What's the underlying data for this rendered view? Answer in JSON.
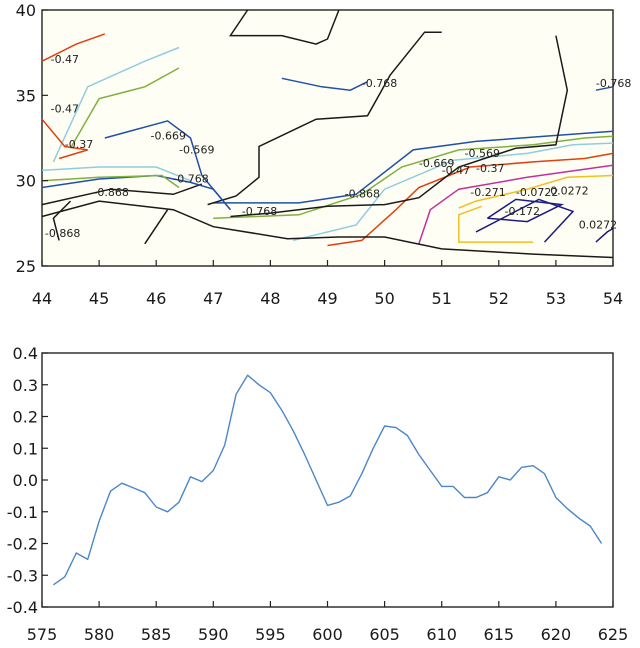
{
  "chart_data": [
    {
      "type": "contour",
      "xlim": [
        44,
        54
      ],
      "ylim": [
        25,
        40
      ],
      "x_ticks": [
        "44",
        "45",
        "46",
        "47",
        "48",
        "49",
        "50",
        "51",
        "52",
        "53",
        "54"
      ],
      "y_ticks": [
        "25",
        "30",
        "35",
        "40"
      ],
      "grid": false,
      "contour_labels": [
        "-0.47",
        "-0.47",
        "-0.37",
        "-0.669",
        "-0.569",
        "-0.768",
        "-0.868",
        "-0.868",
        "-0.768",
        "-0.768",
        "-0.868",
        "-0.669",
        "-0.569",
        "-0.47",
        "-0.37",
        "-0.271",
        "-0.0722",
        "-0.172",
        "0.0272",
        "0.0272",
        "-0.768"
      ],
      "contours": [
        {
          "level": "0.0272",
          "color": "#f0c020",
          "points": [
            [
              51.3,
              28.4
            ],
            [
              51.6,
              28.8
            ],
            [
              52.5,
              29.5
            ],
            [
              53.2,
              30.2
            ],
            [
              54.0,
              30.3
            ]
          ]
        },
        {
          "level": "0.0272",
          "color": "#f0c020",
          "points": [
            [
              51.7,
              28.5
            ],
            [
              51.3,
              28.0
            ],
            [
              51.3,
              26.4
            ],
            [
              52.6,
              26.4
            ]
          ]
        },
        {
          "level": "-0.0722",
          "color": "#1c1c80",
          "points": [
            [
              51.8,
              27.8
            ],
            [
              52.3,
              28.9
            ],
            [
              53.1,
              28.6
            ],
            [
              52.5,
              27.6
            ],
            [
              51.8,
              27.8
            ]
          ]
        },
        {
          "level": "-0.172",
          "color": "#1c1c80",
          "points": [
            [
              51.6,
              27.0
            ],
            [
              52.7,
              28.9
            ],
            [
              53.3,
              28.2
            ],
            [
              52.8,
              26.4
            ]
          ]
        },
        {
          "level": "0.0272",
          "color": "#1c1c80",
          "points": [
            [
              53.7,
              26.4
            ],
            [
              53.9,
              27.0
            ],
            [
              54.0,
              27.2
            ]
          ]
        },
        {
          "level": "-0.271",
          "color": "#c030a0",
          "points": [
            [
              50.6,
              26.3
            ],
            [
              50.8,
              28.3
            ],
            [
              51.3,
              29.5
            ],
            [
              52.5,
              30.2
            ],
            [
              54.0,
              30.9
            ]
          ]
        },
        {
          "level": "-0.37",
          "color": "#e04010",
          "points": [
            [
              49.0,
              26.2
            ],
            [
              49.6,
              26.5
            ],
            [
              50.2,
              28.3
            ],
            [
              50.6,
              29.6
            ],
            [
              51.5,
              30.8
            ],
            [
              52.6,
              31.1
            ],
            [
              53.5,
              31.3
            ],
            [
              54.0,
              31.6
            ]
          ]
        },
        {
          "level": "-0.47",
          "color": "#90cce0",
          "points": [
            [
              48.4,
              26.5
            ],
            [
              49.5,
              27.4
            ],
            [
              50.0,
              29.5
            ],
            [
              51.2,
              31.2
            ],
            [
              52.5,
              31.6
            ],
            [
              53.3,
              32.1
            ],
            [
              54.0,
              32.2
            ]
          ]
        },
        {
          "level": "-0.569",
          "color": "#80b040",
          "points": [
            [
              47.0,
              27.8
            ],
            [
              48.5,
              28.0
            ],
            [
              49.6,
              29.2
            ],
            [
              50.3,
              30.8
            ],
            [
              51.3,
              31.8
            ],
            [
              52.6,
              32.1
            ],
            [
              53.5,
              32.5
            ],
            [
              54.0,
              32.6
            ]
          ]
        },
        {
          "level": "-0.669",
          "color": "#2050a8",
          "points": [
            [
              47.0,
              28.7
            ],
            [
              48.5,
              28.7
            ],
            [
              49.5,
              29.2
            ],
            [
              50.5,
              31.8
            ],
            [
              51.6,
              32.3
            ],
            [
              52.8,
              32.6
            ],
            [
              54.0,
              32.9
            ]
          ]
        },
        {
          "level": "-0.868",
          "color": "#1a1a1a",
          "points": [
            [
              46.9,
              28.6
            ],
            [
              47.4,
              29.1
            ],
            [
              47.8,
              30.2
            ],
            [
              47.8,
              32.0
            ],
            [
              48.8,
              33.6
            ],
            [
              49.7,
              33.8
            ],
            [
              50.1,
              36.2
            ],
            [
              50.7,
              38.7
            ],
            [
              51.0,
              38.7
            ]
          ]
        },
        {
          "level": "-0.868",
          "color": "#1a1a1a",
          "points": [
            [
              47.3,
              27.9
            ],
            [
              48.0,
              28.1
            ],
            [
              49.0,
              28.5
            ],
            [
              50.0,
              28.6
            ],
            [
              50.6,
              29.0
            ],
            [
              51.3,
              30.8
            ],
            [
              52.3,
              31.9
            ],
            [
              53.0,
              32.1
            ],
            [
              53.2,
              35.3
            ],
            [
              53.0,
              38.5
            ]
          ]
        },
        {
          "level": "-0.868",
          "color": "#1a1a1a",
          "points": [
            [
              44.0,
              27.9
            ],
            [
              45.0,
              28.8
            ],
            [
              46.3,
              28.3
            ],
            [
              47.0,
              27.3
            ],
            [
              48.3,
              26.6
            ],
            [
              49.2,
              26.7
            ],
            [
              50.0,
              26.7
            ],
            [
              51.0,
              26.0
            ],
            [
              52.6,
              25.7
            ],
            [
              54.0,
              25.5
            ]
          ]
        },
        {
          "level": "-0.868",
          "color": "#1a1a1a",
          "points": [
            [
              44.0,
              28.6
            ],
            [
              45.2,
              29.5
            ],
            [
              46.3,
              29.2
            ],
            [
              46.8,
              29.8
            ]
          ]
        },
        {
          "level": "-0.868",
          "color": "#1a1a1a",
          "points": [
            [
              44.5,
              28.8
            ],
            [
              44.2,
              27.8
            ],
            [
              44.3,
              26.5
            ]
          ]
        },
        {
          "level": "-0.868",
          "color": "#1a1a1a",
          "points": [
            [
              45.8,
              26.3
            ],
            [
              46.2,
              28.3
            ]
          ]
        },
        {
          "level": "-0.868",
          "color": "#1a1a1a",
          "points": [
            [
              47.6,
              40.0
            ],
            [
              47.3,
              38.5
            ],
            [
              48.2,
              38.5
            ],
            [
              48.8,
              38.0
            ],
            [
              49.0,
              38.3
            ],
            [
              49.2,
              40.0
            ]
          ]
        },
        {
          "level": "-0.768",
          "color": "#2050a8",
          "points": [
            [
              48.2,
              36.0
            ],
            [
              48.9,
              35.5
            ],
            [
              49.4,
              35.3
            ],
            [
              49.7,
              35.8
            ]
          ]
        },
        {
          "level": "-0.768",
          "color": "#2050a8",
          "points": [
            [
              53.7,
              35.3
            ],
            [
              54.0,
              35.5
            ]
          ]
        },
        {
          "level": "-0.768",
          "color": "#2050a8",
          "points": [
            [
              44.0,
              29.6
            ],
            [
              45.0,
              30.1
            ],
            [
              46.0,
              30.3
            ],
            [
              46.6,
              29.9
            ],
            [
              47.0,
              29.5
            ],
            [
              47.3,
              28.3
            ]
          ]
        },
        {
          "level": "-0.669",
          "color": "#2050a8",
          "points": [
            [
              45.1,
              32.5
            ],
            [
              46.2,
              33.5
            ],
            [
              46.6,
              32.5
            ],
            [
              46.8,
              30.3
            ],
            [
              47.3,
              28.3
            ]
          ]
        },
        {
          "level": "-0.569",
          "color": "#80b040",
          "points": [
            [
              44.5,
              31.9
            ],
            [
              45.0,
              34.8
            ],
            [
              45.8,
              35.5
            ],
            [
              46.4,
              36.6
            ]
          ]
        },
        {
          "level": "-0.47",
          "color": "#90cce0",
          "points": [
            [
              44.2,
              31.1
            ],
            [
              44.8,
              35.5
            ],
            [
              45.8,
              37.0
            ],
            [
              46.4,
              37.8
            ]
          ]
        },
        {
          "level": "-0.37",
          "color": "#e04010",
          "points": [
            [
              44.0,
              37.0
            ],
            [
              44.6,
              38.0
            ],
            [
              45.1,
              38.6
            ]
          ]
        },
        {
          "level": "-0.37",
          "color": "#e04010",
          "points": [
            [
              44.0,
              33.6
            ],
            [
              44.4,
              32.0
            ],
            [
              44.8,
              31.8
            ],
            [
              44.3,
              31.3
            ]
          ]
        },
        {
          "level": "-0.47",
          "color": "#90cce0",
          "points": [
            [
              44.0,
              30.6
            ],
            [
              45.0,
              30.8
            ],
            [
              46.0,
              30.8
            ],
            [
              46.6,
              30.0
            ]
          ]
        },
        {
          "level": "-0.669",
          "color": "#80b040",
          "points": [
            [
              44.0,
              30.0
            ],
            [
              45.0,
              30.2
            ],
            [
              46.1,
              30.3
            ],
            [
              46.4,
              29.6
            ]
          ]
        }
      ]
    },
    {
      "type": "line",
      "xlim": [
        575,
        625
      ],
      "ylim": [
        -0.4,
        0.4
      ],
      "x_ticks": [
        "575",
        "580",
        "585",
        "590",
        "595",
        "600",
        "605",
        "610",
        "615",
        "620",
        "625"
      ],
      "y_ticks": [
        "0.4",
        "0.3",
        "0.2",
        "0.1",
        "0.0",
        "-0.1",
        "-0.2",
        "-0.3",
        "-0.4"
      ],
      "grid": false,
      "series": [
        {
          "color": "#4a86c8",
          "x": [
            576,
            577,
            578,
            579,
            580,
            581,
            582,
            583,
            584,
            585,
            586,
            587,
            588,
            589,
            590,
            591,
            592,
            593,
            594,
            595,
            596,
            597,
            598,
            599,
            600,
            601,
            602,
            603,
            604,
            605,
            606,
            607,
            608,
            609,
            610,
            611,
            612,
            613,
            614,
            615,
            616,
            617,
            618,
            619,
            620,
            621,
            622,
            623,
            624
          ],
          "y": [
            -0.33,
            -0.305,
            -0.23,
            -0.25,
            -0.13,
            -0.035,
            -0.01,
            -0.025,
            -0.04,
            -0.085,
            -0.1,
            -0.07,
            0.01,
            -0.005,
            0.03,
            0.11,
            0.27,
            0.33,
            0.3,
            0.275,
            0.22,
            0.155,
            0.08,
            0.0,
            -0.08,
            -0.07,
            -0.05,
            0.02,
            0.1,
            0.17,
            0.165,
            0.14,
            0.08,
            0.03,
            -0.02,
            -0.02,
            -0.055,
            -0.055,
            -0.04,
            0.01,
            0.0,
            0.04,
            0.045,
            0.02,
            -0.055,
            -0.09,
            -0.12,
            -0.145,
            -0.2
          ]
        }
      ]
    }
  ]
}
